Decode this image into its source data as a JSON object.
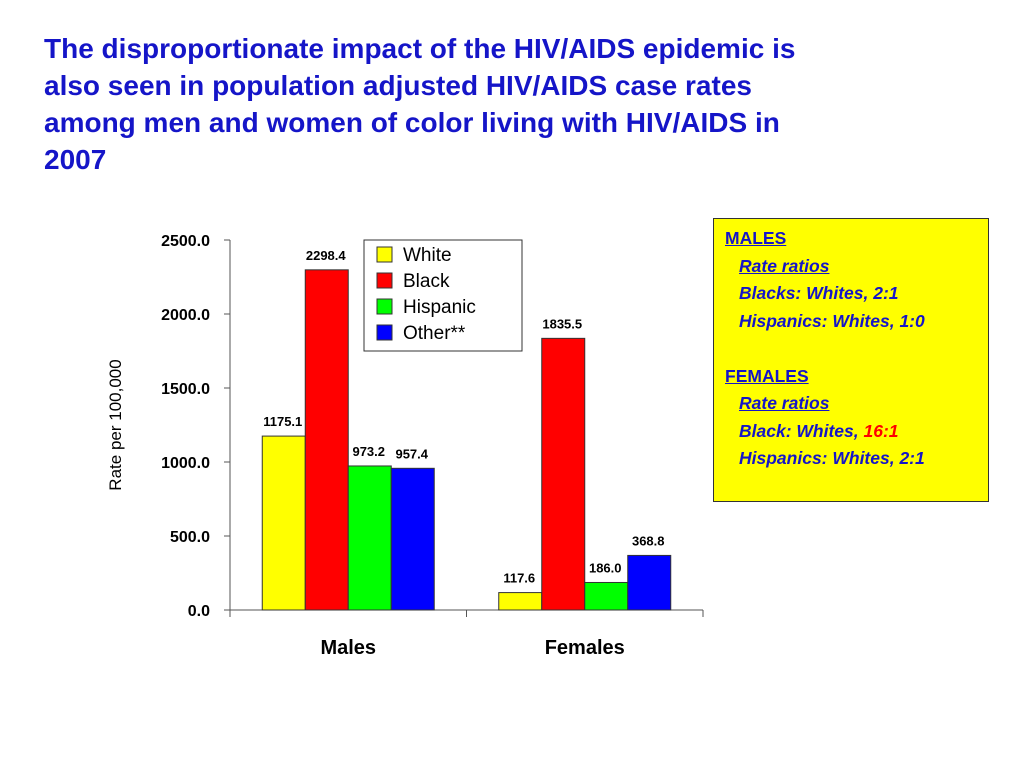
{
  "slide": {
    "title_lines": [
      "The disproportionate impact of the HIV/AIDS epidemic is",
      "also seen in population adjusted HIV/AIDS case rates",
      "among men and women of color living with HIV/AIDS in",
      "2007"
    ]
  },
  "ratio_box": {
    "males_heading": "MALES",
    "males_subheading": "Rate ratios",
    "males_line1": "Blacks: Whites, 2:1",
    "males_line2": "Hispanics: Whites, 1:0",
    "females_heading": "FEMALES",
    "females_subheading": "Rate ratios",
    "females_line1_prefix": "Black: Whites, ",
    "females_line1_highlight": "16:1",
    "females_line2": "Hispanics: Whites, 2:1",
    "highlight_color": "#ff0000",
    "background_color": "#ffff00",
    "text_color": "#1515c8"
  },
  "chart_data": {
    "type": "bar",
    "categories": [
      "Males",
      "Females"
    ],
    "series": [
      {
        "name": "White",
        "color": "#ffff00",
        "values": [
          1175.1,
          117.6
        ],
        "labels": [
          "1175.1",
          "117.6"
        ]
      },
      {
        "name": "Black",
        "color": "#ff0000",
        "values": [
          2298.4,
          1835.5
        ],
        "labels": [
          "2298.4",
          "1835.5"
        ]
      },
      {
        "name": "Hispanic",
        "color": "#00ff00",
        "values": [
          973.2,
          186.0
        ],
        "labels": [
          "973.2",
          "186.0"
        ]
      },
      {
        "name": "Other**",
        "color": "#0000ff",
        "values": [
          957.4,
          368.8
        ],
        "labels": [
          "957.4",
          "368.8"
        ]
      }
    ],
    "ylabel": "Rate per 100,000",
    "xlabel": "",
    "ylim": [
      0,
      2500
    ],
    "yticks": [
      0,
      500,
      1000,
      1500,
      2000,
      2500
    ],
    "ytick_labels": [
      "0.0",
      "500.0",
      "1000.0",
      "1500.0",
      "2000.0",
      "2500.0"
    ],
    "grid": false,
    "legend_position": "top-right"
  }
}
